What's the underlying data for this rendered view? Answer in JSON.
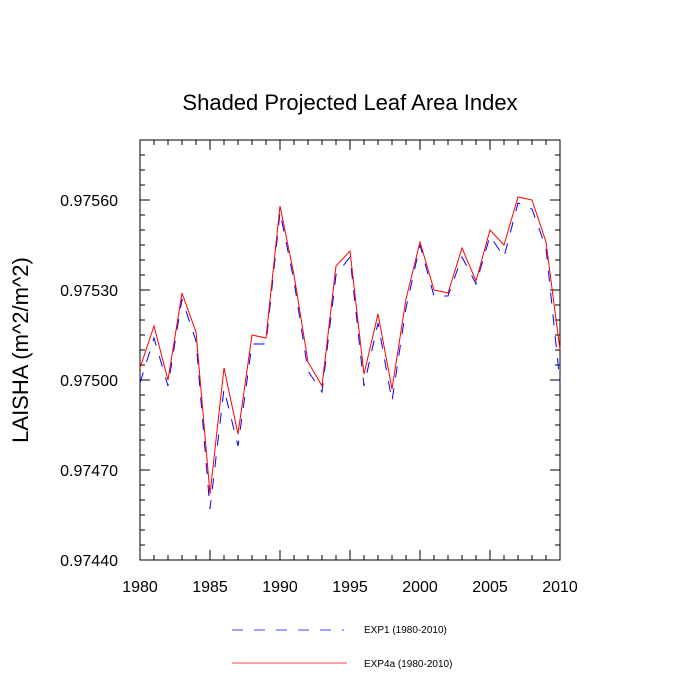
{
  "chart_data": {
    "type": "line",
    "title": "Shaded Projected Leaf Area Index",
    "ylabel": "LAISHA  (m^2/m^2)",
    "xlabel": "",
    "xlim": [
      1980,
      2010
    ],
    "ylim": [
      0.9744,
      0.9758
    ],
    "xticks": [
      1980,
      1985,
      1990,
      1995,
      2000,
      2005,
      2010
    ],
    "xtick_labels": [
      "1980",
      "1985",
      "1990",
      "1995",
      "2000",
      "2005",
      "2010"
    ],
    "yticks": [
      0.9744,
      0.9747,
      0.975,
      0.9753,
      0.9756
    ],
    "ytick_labels": [
      "0.97440",
      "0.97470",
      "0.97500",
      "0.97530",
      "0.97560"
    ],
    "x": [
      1980,
      1981,
      1982,
      1983,
      1984,
      1985,
      1986,
      1987,
      1988,
      1989,
      1990,
      1991,
      1992,
      1993,
      1994,
      1995,
      1996,
      1997,
      1998,
      1999,
      2000,
      2001,
      2002,
      2003,
      2004,
      2005,
      2006,
      2007,
      2008,
      2009,
      2010
    ],
    "series": [
      {
        "name": "EXP1 (1980-2010)",
        "color": "#0000ff",
        "style": "dashed",
        "values": [
          0.97499,
          0.97514,
          0.97498,
          0.97527,
          0.97513,
          0.97457,
          0.97497,
          0.97478,
          0.97512,
          0.97512,
          0.97556,
          0.97533,
          0.97503,
          0.97496,
          0.97535,
          0.97541,
          0.97498,
          0.97519,
          0.97493,
          0.97524,
          0.97545,
          0.97528,
          0.97528,
          0.97541,
          0.97532,
          0.97548,
          0.97541,
          0.97559,
          0.97557,
          0.97544,
          0.97499
        ]
      },
      {
        "name": "EXP4a (1980-2010)",
        "color": "#ff0000",
        "style": "solid",
        "values": [
          0.97504,
          0.97518,
          0.975,
          0.97529,
          0.97516,
          0.97462,
          0.97504,
          0.97482,
          0.97515,
          0.97514,
          0.97558,
          0.97535,
          0.97506,
          0.97498,
          0.97538,
          0.97543,
          0.97502,
          0.97522,
          0.97497,
          0.97527,
          0.97546,
          0.9753,
          0.97529,
          0.97544,
          0.97533,
          0.9755,
          0.97545,
          0.97561,
          0.9756,
          0.97546,
          0.9751
        ]
      }
    ],
    "legend": {
      "position": "bottom-center",
      "entries": [
        "EXP1 (1980-2010)",
        "EXP4a (1980-2010)"
      ]
    },
    "grid": false
  }
}
